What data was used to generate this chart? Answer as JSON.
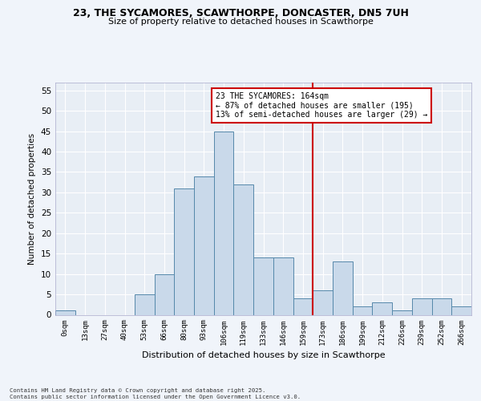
{
  "title_line1": "23, THE SYCAMORES, SCAWTHORPE, DONCASTER, DN5 7UH",
  "title_line2": "Size of property relative to detached houses in Scawthorpe",
  "xlabel": "Distribution of detached houses by size in Scawthorpe",
  "ylabel": "Number of detached properties",
  "categories": [
    "0sqm",
    "13sqm",
    "27sqm",
    "40sqm",
    "53sqm",
    "66sqm",
    "80sqm",
    "93sqm",
    "106sqm",
    "119sqm",
    "133sqm",
    "146sqm",
    "159sqm",
    "173sqm",
    "186sqm",
    "199sqm",
    "212sqm",
    "226sqm",
    "239sqm",
    "252sqm",
    "266sqm"
  ],
  "values": [
    1,
    0,
    0,
    0,
    5,
    10,
    31,
    34,
    45,
    32,
    14,
    14,
    4,
    6,
    13,
    2,
    3,
    1,
    4,
    4,
    2
  ],
  "bar_color": "#c9d9ea",
  "bar_edge_color": "#5588aa",
  "background_color": "#e8eef5",
  "grid_color": "#ffffff",
  "vline_color": "#cc0000",
  "annotation_text": "23 THE SYCAMORES: 164sqm\n← 87% of detached houses are smaller (195)\n13% of semi-detached houses are larger (29) →",
  "annotation_box_color": "#cc0000",
  "footer_text": "Contains HM Land Registry data © Crown copyright and database right 2025.\nContains public sector information licensed under the Open Government Licence v3.0.",
  "ylim": [
    0,
    57
  ],
  "yticks": [
    0,
    5,
    10,
    15,
    20,
    25,
    30,
    35,
    40,
    45,
    50,
    55
  ],
  "fig_bg": "#f0f4fa"
}
